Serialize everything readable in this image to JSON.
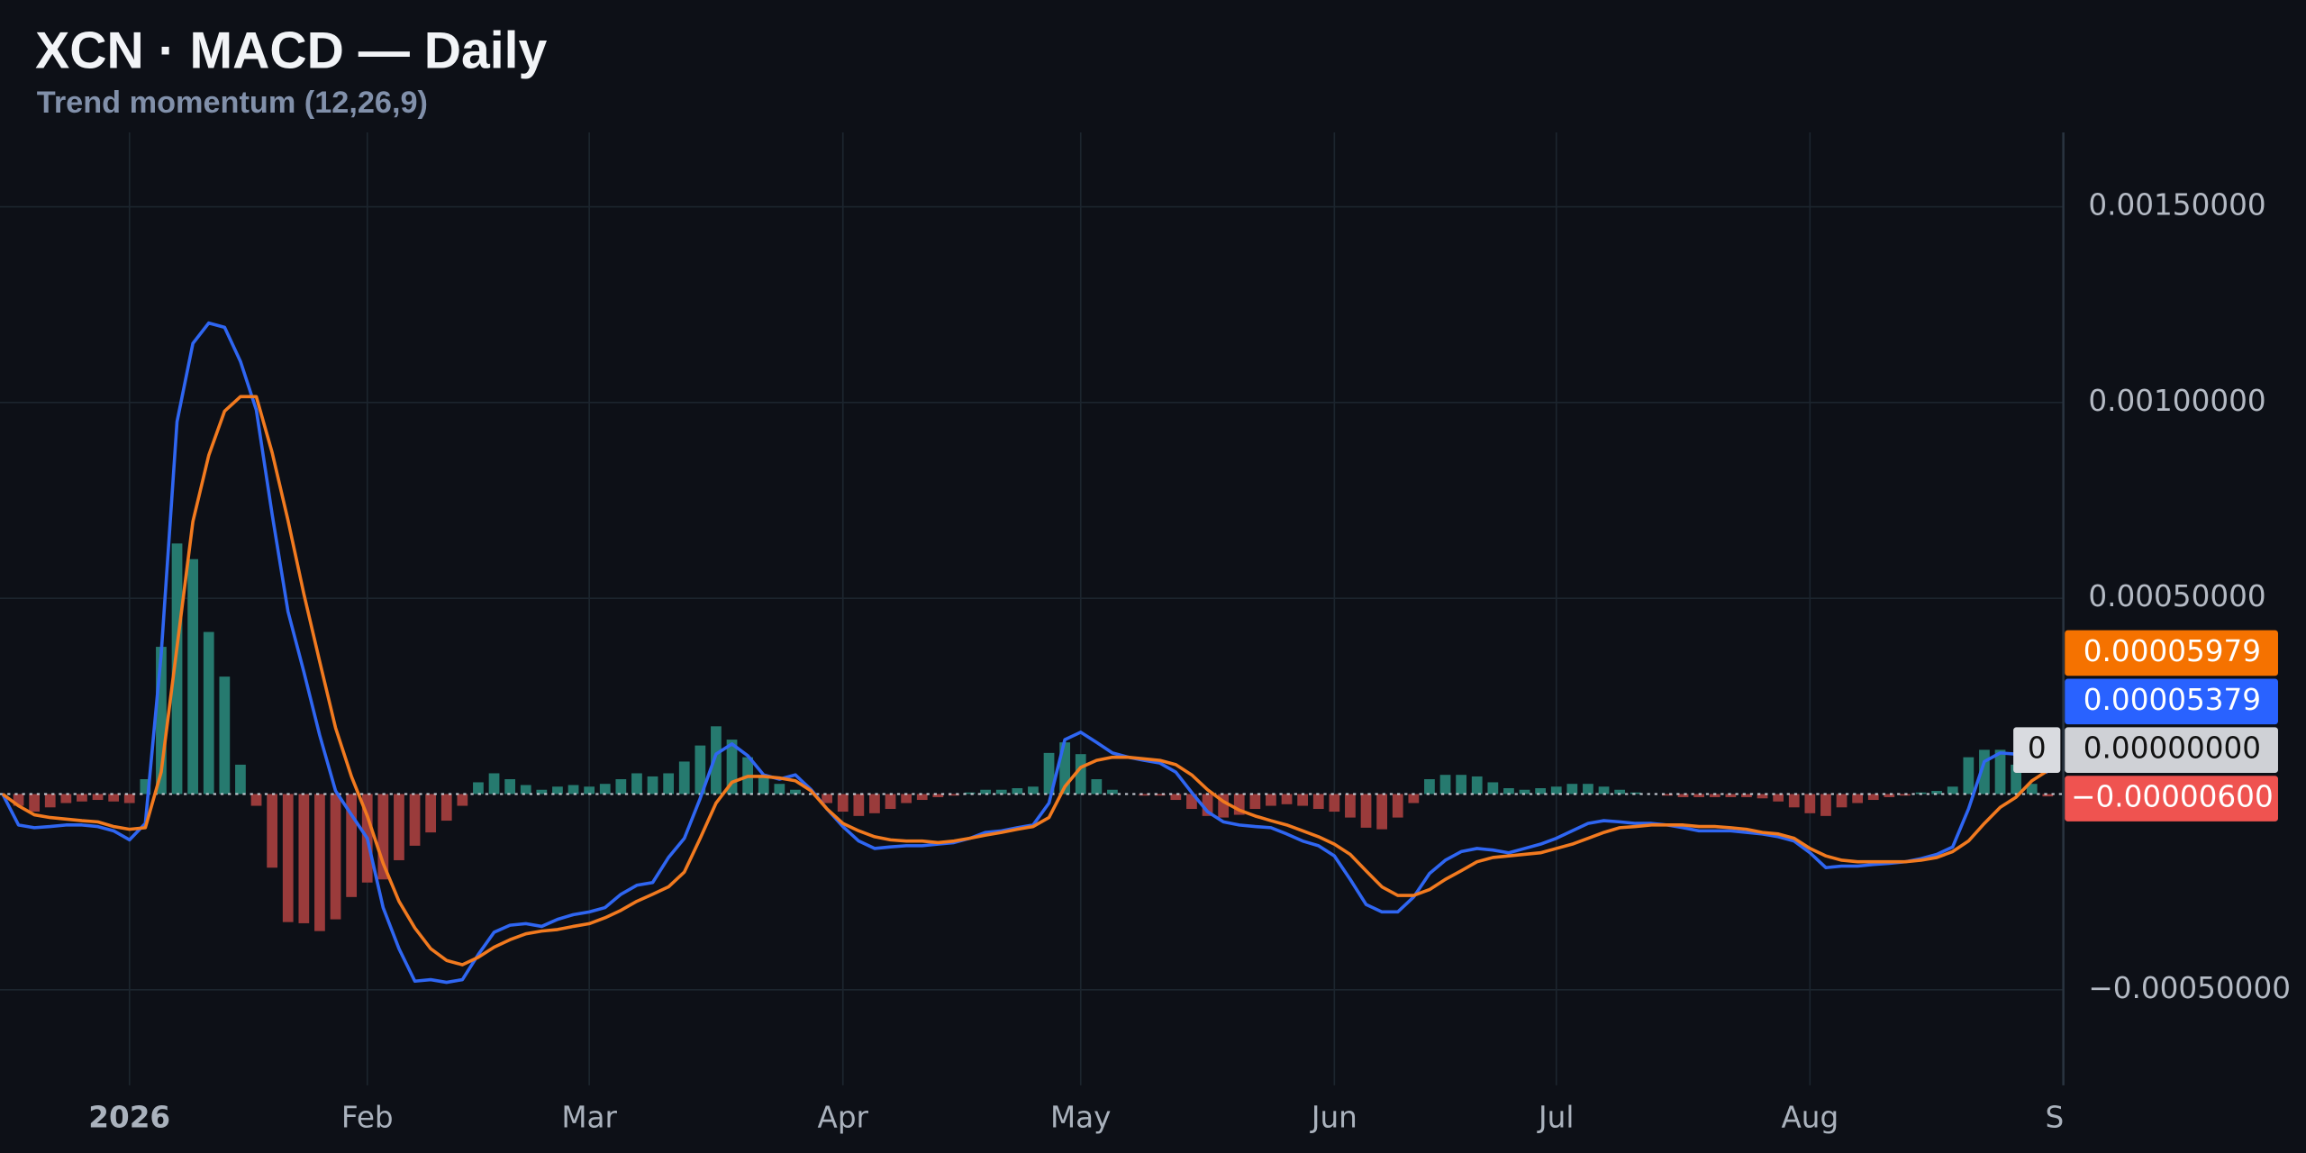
{
  "chart_data": {
    "type": "line",
    "title": "XCN · MACD — Daily",
    "subtitle": "Trend momentum (12,26,9)",
    "categories": [
      null,
      null,
      null,
      null,
      null,
      null,
      null,
      null,
      "2026",
      null,
      null,
      null,
      null,
      null,
      null,
      null,
      null,
      null,
      null,
      null,
      null,
      null,
      null,
      "Feb",
      null,
      null,
      null,
      null,
      null,
      null,
      null,
      null,
      null,
      null,
      null,
      null,
      null,
      "Mar",
      null,
      null,
      null,
      null,
      null,
      null,
      null,
      null,
      null,
      null,
      null,
      null,
      null,
      null,
      null,
      "Apr",
      null,
      null,
      null,
      null,
      null,
      null,
      null,
      null,
      null,
      null,
      null,
      null,
      null,
      null,
      "May",
      null,
      null,
      null,
      null,
      null,
      null,
      null,
      null,
      null,
      null,
      null,
      null,
      null,
      null,
      null,
      "Jun",
      null,
      null,
      null,
      null,
      null,
      null,
      null,
      null,
      null,
      null,
      null,
      null,
      null,
      "Jul",
      null,
      null,
      null,
      null,
      null,
      null,
      null,
      null,
      null,
      null,
      null,
      null,
      null,
      null,
      null,
      "Aug",
      null,
      null,
      null,
      null,
      null,
      null,
      null,
      null,
      null,
      null,
      null,
      null,
      null,
      null,
      null,
      "Se"
    ],
    "series": [
      {
        "type": "line",
        "color": "#2f66f2",
        "tag_color": "#2962ff",
        "last_label": "0.00005379",
        "values": [
          0,
          -7.9e-05,
          -8.6e-05,
          -8.3e-05,
          -7.9e-05,
          -7.9e-05,
          -8.3e-05,
          -9.4e-05,
          -0.000117,
          -7.5e-05,
          0.000357,
          0.000951,
          0.001151,
          0.001203,
          0.001192,
          0.001105,
          0.000981,
          0.000714,
          0.000466,
          0.000312,
          0.00015,
          8e-06,
          -5.3e-05,
          -0.000113,
          -0.00029,
          -0.000395,
          -0.000478,
          -0.000474,
          -0.000481,
          -0.000474,
          -0.00041,
          -0.000353,
          -0.000335,
          -0.000331,
          -0.000338,
          -0.00032,
          -0.000308,
          -0.000301,
          -0.00029,
          -0.000256,
          -0.000233,
          -0.000226,
          -0.000162,
          -0.000113,
          -1.1e-05,
          0.000102,
          0.000128,
          9.8e-05,
          4.9e-05,
          3.8e-05,
          4.9e-05,
          1.1e-05,
          -3.8e-05,
          -8.3e-05,
          -0.00012,
          -0.000139,
          -0.000135,
          -0.000132,
          -0.000132,
          -0.000128,
          -0.000124,
          -0.000113,
          -9.8e-05,
          -9.4e-05,
          -8.6e-05,
          -7.9e-05,
          -2.3e-05,
          0.000139,
          0.000158,
          0.000132,
          0.000105,
          9.4e-05,
          8.6e-05,
          7.9e-05,
          5.6e-05,
          4e-06,
          -4.5e-05,
          -7.1e-05,
          -7.9e-05,
          -8.3e-05,
          -8.6e-05,
          -0.000102,
          -0.00012,
          -0.000132,
          -0.000158,
          -0.000218,
          -0.000282,
          -0.000301,
          -0.000301,
          -0.000263,
          -0.000203,
          -0.000169,
          -0.000147,
          -0.000139,
          -0.000143,
          -0.00015,
          -0.000139,
          -0.000128,
          -0.000113,
          -9.4e-05,
          -7.5e-05,
          -6.8e-05,
          -7.1e-05,
          -7.5e-05,
          -7.5e-05,
          -7.9e-05,
          -8.6e-05,
          -9.4e-05,
          -9.4e-05,
          -9.4e-05,
          -9.8e-05,
          -0.000102,
          -0.000109,
          -0.00012,
          -0.00015,
          -0.000188,
          -0.000184,
          -0.000184,
          -0.00018,
          -0.000177,
          -0.000173,
          -0.000165,
          -0.000154,
          -0.000135,
          -3.8e-05,
          8.3e-05,
          0.000105,
          0.000102,
          9.4e-05,
          5.379e-05,
          null
        ]
      },
      {
        "type": "line",
        "color": "#f27a1f",
        "tag_color": "#f57200",
        "last_label": "0.00005979",
        "values": [
          0,
          -3e-05,
          -5.3e-05,
          -6e-05,
          -6.4e-05,
          -6.8e-05,
          -7.1e-05,
          -8.3e-05,
          -9e-05,
          -8.6e-05,
          5.6e-05,
          0.000376,
          0.000696,
          0.000865,
          0.000978,
          0.001015,
          0.001015,
          0.000872,
          0.000699,
          0.000511,
          0.000338,
          0.000169,
          4.5e-05,
          -5.6e-05,
          -0.000177,
          -0.000274,
          -0.000342,
          -0.000395,
          -0.000425,
          -0.000436,
          -0.000417,
          -0.000391,
          -0.000372,
          -0.000357,
          -0.00035,
          -0.000346,
          -0.000338,
          -0.000331,
          -0.000316,
          -0.000297,
          -0.000274,
          -0.000256,
          -0.000237,
          -0.000199,
          -0.000113,
          -2.3e-05,
          3e-05,
          4.5e-05,
          4.5e-05,
          4.1e-05,
          3.4e-05,
          8e-06,
          -3.8e-05,
          -7.5e-05,
          -9.4e-05,
          -0.000109,
          -0.000117,
          -0.00012,
          -0.00012,
          -0.000124,
          -0.00012,
          -0.000113,
          -0.000105,
          -9.8e-05,
          -9e-05,
          -8.3e-05,
          -6e-05,
          1.9e-05,
          6.8e-05,
          8.6e-05,
          9.4e-05,
          9.4e-05,
          9e-05,
          8.6e-05,
          7.5e-05,
          4.9e-05,
          1.1e-05,
          -1.9e-05,
          -4.1e-05,
          -5.6e-05,
          -6.8e-05,
          -7.9e-05,
          -9.4e-05,
          -0.000109,
          -0.000128,
          -0.000154,
          -0.000196,
          -0.000237,
          -0.000259,
          -0.000259,
          -0.000244,
          -0.000218,
          -0.000196,
          -0.000173,
          -0.000162,
          -0.000158,
          -0.000154,
          -0.00015,
          -0.000139,
          -0.000128,
          -0.000113,
          -9.8e-05,
          -8.6e-05,
          -8.3e-05,
          -7.9e-05,
          -7.9e-05,
          -7.9e-05,
          -8.3e-05,
          -8.3e-05,
          -8.6e-05,
          -9e-05,
          -9.8e-05,
          -0.000102,
          -0.000113,
          -0.000139,
          -0.000158,
          -0.000169,
          -0.000173,
          -0.000173,
          -0.000173,
          -0.000173,
          -0.000169,
          -0.000162,
          -0.000147,
          -0.00012,
          -7.5e-05,
          -3.4e-05,
          -8e-06,
          3.4e-05,
          5.979e-05,
          null
        ]
      },
      {
        "type": "bar",
        "color": "#267a6f",
        "negative_color": "#9a3b3b",
        "tag_color": "#ef5350",
        "last_label": "−0.00000600",
        "values": [
          0,
          -3e-05,
          -4.5e-05,
          -3.4e-05,
          -2.3e-05,
          -1.9e-05,
          -1.5e-05,
          -1.9e-05,
          -2.3e-05,
          3.8e-05,
          0.000376,
          0.00064,
          0.0006,
          0.000414,
          0.0003,
          7.5e-05,
          -3e-05,
          -0.000188,
          -0.000327,
          -0.00033,
          -0.00035,
          -0.00032,
          -0.000263,
          -0.000226,
          -0.000218,
          -0.000169,
          -0.000132,
          -9.8e-05,
          -6.8e-05,
          -3e-05,
          3e-05,
          5.3e-05,
          3.8e-05,
          2.3e-05,
          1.1e-05,
          1.9e-05,
          2.3e-05,
          1.9e-05,
          2.6e-05,
          3.8e-05,
          5.3e-05,
          4.5e-05,
          5.3e-05,
          8.3e-05,
          0.000124,
          0.000173,
          0.000139,
          9.4e-05,
          4.5e-05,
          2.6e-05,
          1.1e-05,
          0,
          -2.3e-05,
          -4.5e-05,
          -5.6e-05,
          -4.9e-05,
          -3.8e-05,
          -2.3e-05,
          -1.5e-05,
          -8e-06,
          -4e-06,
          4e-06,
          1.1e-05,
          1.1e-05,
          1.5e-05,
          1.9e-05,
          0.000105,
          0.000132,
          0.000102,
          3.8e-05,
          1.1e-05,
          0,
          -4e-06,
          -4e-06,
          -1.5e-05,
          -3.8e-05,
          -5.6e-05,
          -6e-05,
          -5.3e-05,
          -3.8e-05,
          -3e-05,
          -2.6e-05,
          -3e-05,
          -3.8e-05,
          -4.5e-05,
          -6e-05,
          -8.6e-05,
          -9e-05,
          -6e-05,
          -2.3e-05,
          3.8e-05,
          4.9e-05,
          4.9e-05,
          4.5e-05,
          3e-05,
          1.5e-05,
          1.1e-05,
          1.5e-05,
          1.9e-05,
          2.6e-05,
          2.6e-05,
          1.9e-05,
          1.1e-05,
          4e-06,
          0,
          -4e-06,
          -8e-06,
          -8e-06,
          -8e-06,
          -8e-06,
          -8e-06,
          -1.1e-05,
          -1.9e-05,
          -3.4e-05,
          -4.9e-05,
          -5.6e-05,
          -3.4e-05,
          -2.3e-05,
          -1.5e-05,
          -8e-06,
          -4e-06,
          4e-06,
          8e-06,
          1.9e-05,
          9.4e-05,
          0.000113,
          0.000113,
          7.5e-05,
          2.6e-05,
          -6e-06,
          null
        ]
      }
    ],
    "zero_line": {
      "value": 0,
      "tag": "0",
      "label": "0.00000000"
    },
    "ylim": [
      -0.000744,
      0.00169
    ],
    "yticks": [
      {
        "value": 0.0015,
        "label": "0.00150000"
      },
      {
        "value": 0.001,
        "label": "0.00100000"
      },
      {
        "value": 0.0005,
        "label": "0.00050000"
      },
      {
        "value": -0.0005,
        "label": "−0.00050000"
      }
    ],
    "grid": true
  }
}
